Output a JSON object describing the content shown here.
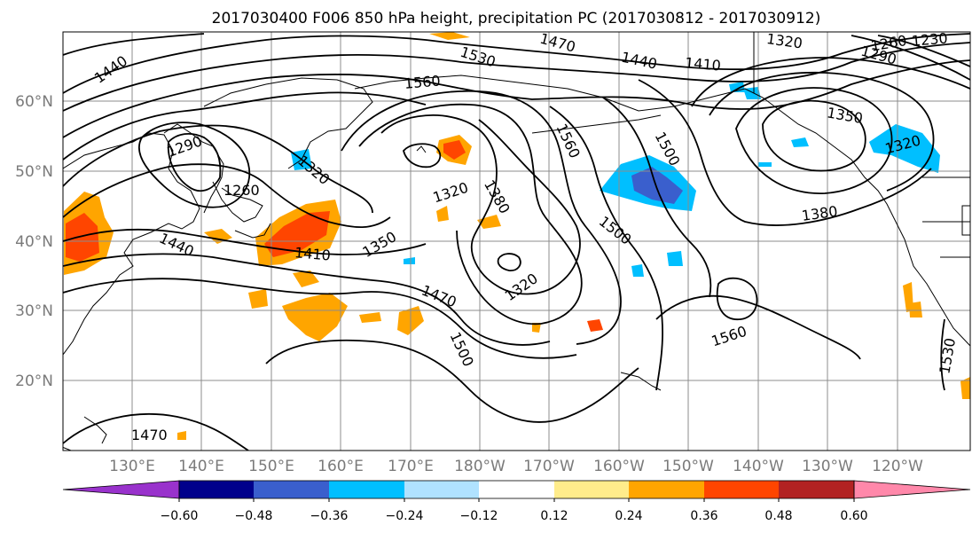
{
  "title": "2017030400 F006 850 hPa height, precipitation PC (2017030812 - 2017030912)",
  "lat_labels": [
    "60°N",
    "50°N",
    "40°N",
    "30°N",
    "20°N"
  ],
  "lon_labels": [
    "130°E",
    "140°E",
    "150°E",
    "160°E",
    "170°E",
    "180°W",
    "170°W",
    "160°W",
    "150°W",
    "140°W",
    "130°W",
    "120°W"
  ],
  "colorbar": {
    "colors": [
      "#9932cc",
      "#00008b",
      "#3a5fcd",
      "#00bfff",
      "#b0e2ff",
      "#ffffff",
      "#ffec8b",
      "#ffa500",
      "#ff4500",
      "#b22222",
      "#ff88aa"
    ],
    "tick_labels": [
      "−0.60",
      "−0.48",
      "−0.36",
      "−0.24",
      "−0.12",
      "0.12",
      "0.24",
      "0.36",
      "0.48",
      "0.60"
    ]
  },
  "contour_labels": [
    "1440",
    "1530",
    "1470",
    "1440",
    "1410",
    "1320",
    "1260",
    "1290",
    "1230",
    "1560",
    "1290",
    "1260",
    "1320",
    "1320",
    "1560",
    "1380",
    "1350",
    "1380",
    "1500",
    "1320",
    "1350",
    "1410",
    "1440",
    "1500",
    "1320",
    "1470",
    "1500",
    "1560",
    "1470",
    "1530"
  ]
}
